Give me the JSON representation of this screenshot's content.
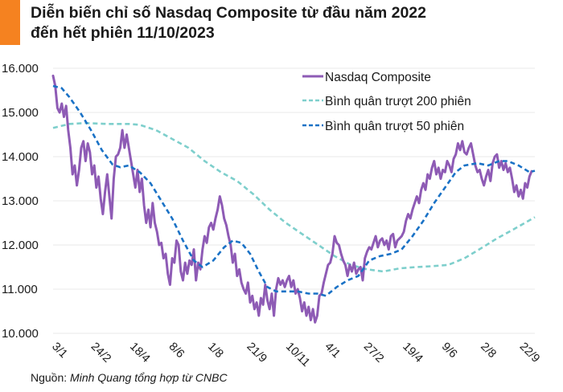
{
  "header": {
    "title_line1": "Diễn biến chỉ số Nasdaq Composite từ đầu năm 2022",
    "title_line2": "đến hết phiên 11/10/2023",
    "accent_color": "#f58220"
  },
  "footer": {
    "source_prefix": "Nguồn: ",
    "source_text": "Minh Quang tổng hợp từ CNBC"
  },
  "chart_data": {
    "type": "line",
    "title": "Diễn biến chỉ số Nasdaq Composite từ đầu năm 2022 đến hết phiên 11/10/2023",
    "xlabel": "",
    "ylabel": "",
    "x_unit": "trading session index (0 = 3/1/2022)",
    "x_range": [
      0,
      445
    ],
    "ylim": [
      10000,
      16000
    ],
    "yticks": [
      10000,
      11000,
      12000,
      13000,
      14000,
      15000,
      16000
    ],
    "ytick_labels": [
      "10.000",
      "11.000",
      "12.000",
      "13.000",
      "14.000",
      "15.000",
      "16.000"
    ],
    "xticks": [
      0,
      36,
      72,
      108,
      144,
      180,
      216,
      252,
      288,
      324,
      360,
      396,
      432
    ],
    "xtick_labels": [
      "3/1",
      "24/2",
      "18/4",
      "8/6",
      "1/8",
      "21/9",
      "10/11",
      "4/1",
      "27/2",
      "19/4",
      "9/6",
      "2/8",
      "22/9"
    ],
    "grid": true,
    "legend_position": "top-right",
    "series": [
      {
        "name": "Nasdaq Composite",
        "color": "#8e5bb5",
        "style": "solid",
        "points": [
          [
            0,
            15830
          ],
          [
            2,
            15600
          ],
          [
            4,
            15100
          ],
          [
            6,
            15000
          ],
          [
            8,
            15200
          ],
          [
            10,
            14900
          ],
          [
            12,
            15150
          ],
          [
            14,
            14600
          ],
          [
            16,
            14200
          ],
          [
            18,
            13600
          ],
          [
            20,
            13800
          ],
          [
            22,
            13350
          ],
          [
            24,
            13700
          ],
          [
            26,
            14200
          ],
          [
            28,
            14350
          ],
          [
            30,
            13900
          ],
          [
            32,
            14300
          ],
          [
            34,
            14100
          ],
          [
            36,
            13600
          ],
          [
            38,
            13800
          ],
          [
            40,
            13300
          ],
          [
            42,
            13550
          ],
          [
            44,
            13050
          ],
          [
            46,
            12700
          ],
          [
            48,
            13200
          ],
          [
            50,
            13600
          ],
          [
            52,
            13100
          ],
          [
            54,
            12600
          ],
          [
            56,
            13500
          ],
          [
            58,
            14000
          ],
          [
            60,
            14050
          ],
          [
            62,
            14200
          ],
          [
            64,
            14600
          ],
          [
            66,
            14200
          ],
          [
            68,
            14500
          ],
          [
            70,
            14200
          ],
          [
            72,
            13900
          ],
          [
            74,
            13600
          ],
          [
            76,
            13300
          ],
          [
            78,
            13700
          ],
          [
            80,
            13200
          ],
          [
            82,
            13500
          ],
          [
            84,
            12900
          ],
          [
            86,
            12500
          ],
          [
            88,
            12800
          ],
          [
            90,
            12400
          ],
          [
            92,
            12950
          ],
          [
            94,
            12500
          ],
          [
            96,
            12300
          ],
          [
            98,
            12000
          ],
          [
            100,
            12050
          ],
          [
            102,
            11700
          ],
          [
            104,
            11800
          ],
          [
            106,
            11350
          ],
          [
            108,
            11100
          ],
          [
            110,
            11700
          ],
          [
            112,
            11600
          ],
          [
            114,
            12100
          ],
          [
            116,
            12000
          ],
          [
            118,
            11400
          ],
          [
            120,
            11200
          ],
          [
            122,
            11600
          ],
          [
            124,
            11350
          ],
          [
            126,
            11650
          ],
          [
            128,
            11550
          ],
          [
            130,
            11900
          ],
          [
            132,
            11200
          ],
          [
            134,
            11600
          ],
          [
            136,
            11450
          ],
          [
            138,
            11900
          ],
          [
            140,
            12200
          ],
          [
            142,
            12050
          ],
          [
            144,
            12400
          ],
          [
            146,
            12500
          ],
          [
            148,
            12350
          ],
          [
            150,
            12600
          ],
          [
            152,
            12800
          ],
          [
            154,
            13100
          ],
          [
            156,
            12900
          ],
          [
            158,
            12600
          ],
          [
            160,
            12450
          ],
          [
            162,
            12200
          ],
          [
            164,
            12000
          ],
          [
            166,
            11600
          ],
          [
            168,
            11800
          ],
          [
            170,
            11300
          ],
          [
            172,
            11450
          ],
          [
            174,
            11150
          ],
          [
            176,
            11000
          ],
          [
            178,
            10900
          ],
          [
            180,
            11150
          ],
          [
            182,
            10700
          ],
          [
            184,
            10850
          ],
          [
            186,
            10550
          ],
          [
            188,
            10700
          ],
          [
            190,
            10400
          ],
          [
            192,
            10800
          ],
          [
            194,
            10650
          ],
          [
            196,
            11100
          ],
          [
            198,
            10750
          ],
          [
            200,
            10550
          ],
          [
            202,
            10900
          ],
          [
            204,
            10400
          ],
          [
            206,
            11000
          ],
          [
            208,
            11250
          ],
          [
            210,
            11100
          ],
          [
            212,
            11200
          ],
          [
            214,
            11050
          ],
          [
            216,
            11200
          ],
          [
            218,
            11300
          ],
          [
            220,
            11050
          ],
          [
            222,
            11200
          ],
          [
            224,
            10900
          ],
          [
            226,
            11000
          ],
          [
            228,
            10800
          ],
          [
            230,
            10500
          ],
          [
            232,
            10700
          ],
          [
            234,
            10400
          ],
          [
            236,
            10600
          ],
          [
            238,
            10300
          ],
          [
            240,
            10550
          ],
          [
            242,
            10250
          ],
          [
            244,
            10400
          ],
          [
            246,
            10850
          ],
          [
            248,
            10900
          ],
          [
            250,
            11150
          ],
          [
            252,
            11350
          ],
          [
            254,
            11550
          ],
          [
            256,
            11600
          ],
          [
            258,
            11800
          ],
          [
            260,
            12200
          ],
          [
            262,
            12050
          ],
          [
            264,
            12000
          ],
          [
            266,
            11800
          ],
          [
            268,
            11650
          ],
          [
            270,
            11550
          ],
          [
            272,
            11300
          ],
          [
            274,
            11550
          ],
          [
            276,
            11400
          ],
          [
            278,
            11600
          ],
          [
            280,
            11350
          ],
          [
            282,
            11450
          ],
          [
            284,
            11500
          ],
          [
            286,
            11200
          ],
          [
            288,
            11700
          ],
          [
            290,
            11850
          ],
          [
            292,
            11950
          ],
          [
            294,
            11900
          ],
          [
            296,
            12050
          ],
          [
            298,
            12200
          ],
          [
            300,
            11950
          ],
          [
            302,
            12100
          ],
          [
            304,
            12150
          ],
          [
            306,
            12000
          ],
          [
            308,
            12100
          ],
          [
            310,
            11900
          ],
          [
            312,
            12200
          ],
          [
            314,
            12250
          ],
          [
            316,
            11950
          ],
          [
            318,
            12100
          ],
          [
            320,
            12150
          ],
          [
            322,
            12200
          ],
          [
            324,
            12300
          ],
          [
            326,
            12550
          ],
          [
            328,
            12700
          ],
          [
            330,
            12600
          ],
          [
            332,
            12800
          ],
          [
            334,
            12950
          ],
          [
            336,
            13100
          ],
          [
            338,
            12950
          ],
          [
            340,
            13250
          ],
          [
            342,
            13400
          ],
          [
            344,
            13250
          ],
          [
            346,
            13600
          ],
          [
            348,
            13500
          ],
          [
            350,
            13750
          ],
          [
            352,
            13900
          ],
          [
            354,
            13600
          ],
          [
            356,
            13750
          ],
          [
            358,
            13500
          ],
          [
            360,
            13700
          ],
          [
            362,
            13650
          ],
          [
            364,
            13900
          ],
          [
            366,
            13800
          ],
          [
            368,
            13650
          ],
          [
            370,
            13950
          ],
          [
            372,
            14050
          ],
          [
            374,
            14300
          ],
          [
            376,
            14150
          ],
          [
            378,
            14350
          ],
          [
            380,
            14100
          ],
          [
            382,
            14050
          ],
          [
            384,
            14200
          ],
          [
            386,
            14300
          ],
          [
            388,
            14050
          ],
          [
            390,
            13800
          ],
          [
            392,
            13650
          ],
          [
            394,
            13700
          ],
          [
            396,
            13500
          ],
          [
            398,
            13350
          ],
          [
            400,
            13550
          ],
          [
            402,
            13700
          ],
          [
            404,
            13450
          ],
          [
            406,
            13850
          ],
          [
            408,
            14000
          ],
          [
            410,
            14050
          ],
          [
            412,
            13750
          ],
          [
            414,
            13900
          ],
          [
            416,
            13700
          ],
          [
            418,
            13850
          ],
          [
            420,
            13650
          ],
          [
            422,
            13750
          ],
          [
            424,
            13500
          ],
          [
            426,
            13200
          ],
          [
            428,
            13350
          ],
          [
            430,
            13100
          ],
          [
            432,
            13250
          ],
          [
            434,
            13050
          ],
          [
            436,
            13400
          ],
          [
            438,
            13300
          ],
          [
            440,
            13550
          ],
          [
            442,
            13670
          ]
        ]
      },
      {
        "name": "Bình quân trượt 200 phiên",
        "color": "#7ecfcc",
        "style": "dashed",
        "points": [
          [
            0,
            14650
          ],
          [
            15,
            14740
          ],
          [
            30,
            14760
          ],
          [
            50,
            14740
          ],
          [
            70,
            14740
          ],
          [
            80,
            14720
          ],
          [
            95,
            14600
          ],
          [
            110,
            14400
          ],
          [
            125,
            14200
          ],
          [
            140,
            13900
          ],
          [
            155,
            13650
          ],
          [
            170,
            13450
          ],
          [
            185,
            13150
          ],
          [
            200,
            12800
          ],
          [
            215,
            12500
          ],
          [
            230,
            12250
          ],
          [
            245,
            12000
          ],
          [
            260,
            11750
          ],
          [
            275,
            11550
          ],
          [
            290,
            11450
          ],
          [
            305,
            11400
          ],
          [
            320,
            11470
          ],
          [
            335,
            11500
          ],
          [
            350,
            11520
          ],
          [
            365,
            11550
          ],
          [
            380,
            11700
          ],
          [
            395,
            11920
          ],
          [
            410,
            12150
          ],
          [
            425,
            12350
          ],
          [
            440,
            12560
          ],
          [
            445,
            12630
          ]
        ]
      },
      {
        "name": "Bình quân trượt 50 phiên",
        "color": "#1a72c6",
        "style": "dashed",
        "points": [
          [
            0,
            15600
          ],
          [
            8,
            15550
          ],
          [
            15,
            15350
          ],
          [
            25,
            15000
          ],
          [
            35,
            14600
          ],
          [
            45,
            14150
          ],
          [
            55,
            13820
          ],
          [
            62,
            13760
          ],
          [
            70,
            13800
          ],
          [
            80,
            13650
          ],
          [
            90,
            13400
          ],
          [
            100,
            13000
          ],
          [
            110,
            12600
          ],
          [
            120,
            12100
          ],
          [
            130,
            11650
          ],
          [
            138,
            11500
          ],
          [
            148,
            11650
          ],
          [
            158,
            11950
          ],
          [
            166,
            12100
          ],
          [
            174,
            12050
          ],
          [
            182,
            11800
          ],
          [
            190,
            11400
          ],
          [
            198,
            11050
          ],
          [
            206,
            10950
          ],
          [
            216,
            10950
          ],
          [
            226,
            10950
          ],
          [
            236,
            10900
          ],
          [
            244,
            10900
          ],
          [
            252,
            10850
          ],
          [
            262,
            11050
          ],
          [
            272,
            11200
          ],
          [
            282,
            11300
          ],
          [
            292,
            11650
          ],
          [
            302,
            11750
          ],
          [
            312,
            11800
          ],
          [
            322,
            11900
          ],
          [
            332,
            12200
          ],
          [
            342,
            12550
          ],
          [
            352,
            12950
          ],
          [
            362,
            13300
          ],
          [
            372,
            13650
          ],
          [
            380,
            13800
          ],
          [
            392,
            13850
          ],
          [
            402,
            13800
          ],
          [
            412,
            13900
          ],
          [
            420,
            13900
          ],
          [
            430,
            13800
          ],
          [
            440,
            13650
          ],
          [
            445,
            13680
          ]
        ]
      }
    ]
  }
}
